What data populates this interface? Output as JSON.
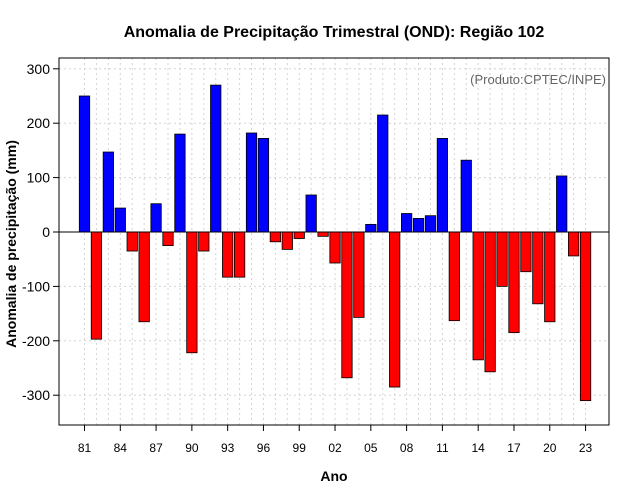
{
  "chart_data": {
    "type": "bar",
    "title": "Anomalia de Precipitação Trimestral (OND): Região 102",
    "xlabel": "Ano",
    "ylabel": "Anomalia de precipitação (mm)",
    "annotation": "(Produto:CPTEC/INPE)",
    "ylim": [
      -360,
      320
    ],
    "yticks": [
      -300,
      -200,
      -100,
      0,
      100,
      200,
      300
    ],
    "ytick_labels": [
      "-300",
      "-200",
      "-100",
      "0",
      "100",
      "200",
      "300"
    ],
    "xtick_labels": [
      "81",
      "84",
      "87",
      "90",
      "93",
      "96",
      "99",
      "02",
      "05",
      "08",
      "11",
      "14",
      "17",
      "20",
      "23"
    ],
    "xtick_years": [
      1981,
      1984,
      1987,
      1990,
      1993,
      1996,
      1999,
      2002,
      2005,
      2008,
      2011,
      2014,
      2017,
      2020,
      2023
    ],
    "grid": true,
    "colors": {
      "positive": "#0000ff",
      "negative": "#ff0000",
      "grid": "#d3d3d3",
      "axis": "#000000"
    },
    "years": [
      1981,
      1982,
      1983,
      1984,
      1985,
      1986,
      1987,
      1988,
      1989,
      1990,
      1991,
      1992,
      1993,
      1994,
      1995,
      1996,
      1997,
      1998,
      1999,
      2000,
      2001,
      2002,
      2003,
      2004,
      2005,
      2006,
      2007,
      2008,
      2009,
      2010,
      2011,
      2012,
      2013,
      2014,
      2015,
      2016,
      2017,
      2018,
      2019,
      2020,
      2021,
      2022,
      2023
    ],
    "values": [
      250,
      -197,
      147,
      44,
      -35,
      -165,
      52,
      -25,
      180,
      -222,
      -35,
      270,
      -83,
      -83,
      182,
      172,
      -18,
      -32,
      -12,
      68,
      -8,
      -57,
      -268,
      -157,
      14,
      215,
      -285,
      34,
      25,
      30,
      172,
      -163,
      132,
      -235,
      -257,
      -100,
      -185,
      -73,
      -132,
      -165,
      103,
      -44,
      -310
    ]
  }
}
